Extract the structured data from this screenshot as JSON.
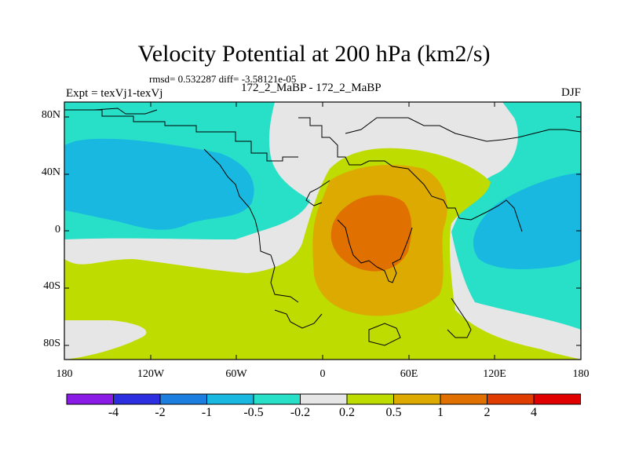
{
  "title": "Velocity Potential at 200 hPa (km2/s)",
  "stats": "rmsd= 0.532287 diff= -3.58121e-05",
  "expt": "Expt = texVj1-texVj",
  "subtitle": "172_2_MaBP - 172_2_MaBP",
  "season": "DJF",
  "lat_labels": [
    "80N",
    "40N",
    "0",
    "40S",
    "80S"
  ],
  "lon_labels": [
    "180",
    "120W",
    "60W",
    "0",
    "60E",
    "120E",
    "180"
  ],
  "legend": {
    "colors": [
      "#8a1be6",
      "#2b2fe0",
      "#1c7fe0",
      "#19b8e0",
      "#28e0c8",
      "#e6e6e6",
      "#bedc00",
      "#dcaa00",
      "#e07000",
      "#e03c00",
      "#e00000"
    ],
    "labels": [
      "-4",
      "-2",
      "-1",
      "-0.5",
      "-0.2",
      "0.2",
      "0.5",
      "1",
      "2",
      "4"
    ]
  },
  "fill_colors": {
    "lt02": "#28e0c8",
    "lt05": "#19b8e0",
    "gt02": "#bedc00",
    "gt05": "#dcaa00",
    "gt1": "#e07000",
    "mid": "#e6e6e6"
  }
}
